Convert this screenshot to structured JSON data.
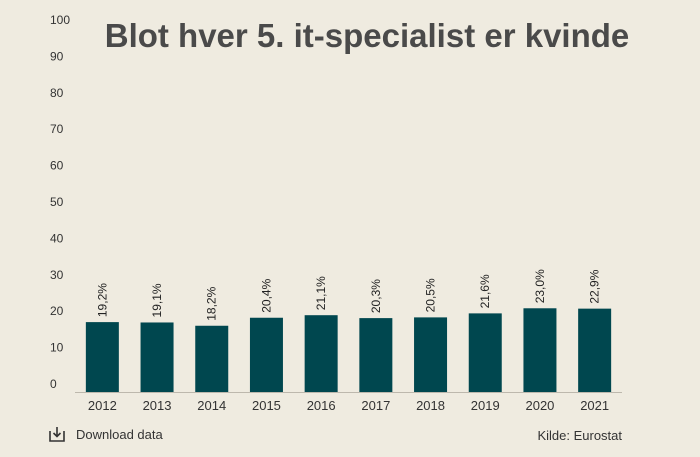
{
  "colors": {
    "background": "#efebe0",
    "bar": "#00474f",
    "title": "#4a4a4a"
  },
  "chart_data": {
    "type": "bar",
    "title": "Blot hver 5. it-specialist er kvinde",
    "xlabel": "",
    "ylabel": "",
    "ylim": [
      0,
      100
    ],
    "yticks": [
      "0",
      "10",
      "20",
      "30",
      "40",
      "50",
      "60",
      "70",
      "80",
      "90",
      "100"
    ],
    "categories": [
      "2012",
      "2013",
      "2014",
      "2015",
      "2016",
      "2017",
      "2018",
      "2019",
      "2020",
      "2021"
    ],
    "values": [
      19.2,
      19.1,
      18.2,
      20.4,
      21.1,
      20.3,
      20.5,
      21.6,
      23.0,
      22.9
    ],
    "data_labels": [
      "19,2%",
      "19,1%",
      "18,2%",
      "20,4%",
      "21,1%",
      "20,3%",
      "20,5%",
      "21,6%",
      "23,0%",
      "22,9%"
    ],
    "grid": false,
    "legend": "none"
  },
  "footer": {
    "download_label": "Download data",
    "download_icon": "download-icon",
    "source": "Kilde: Eurostat"
  }
}
